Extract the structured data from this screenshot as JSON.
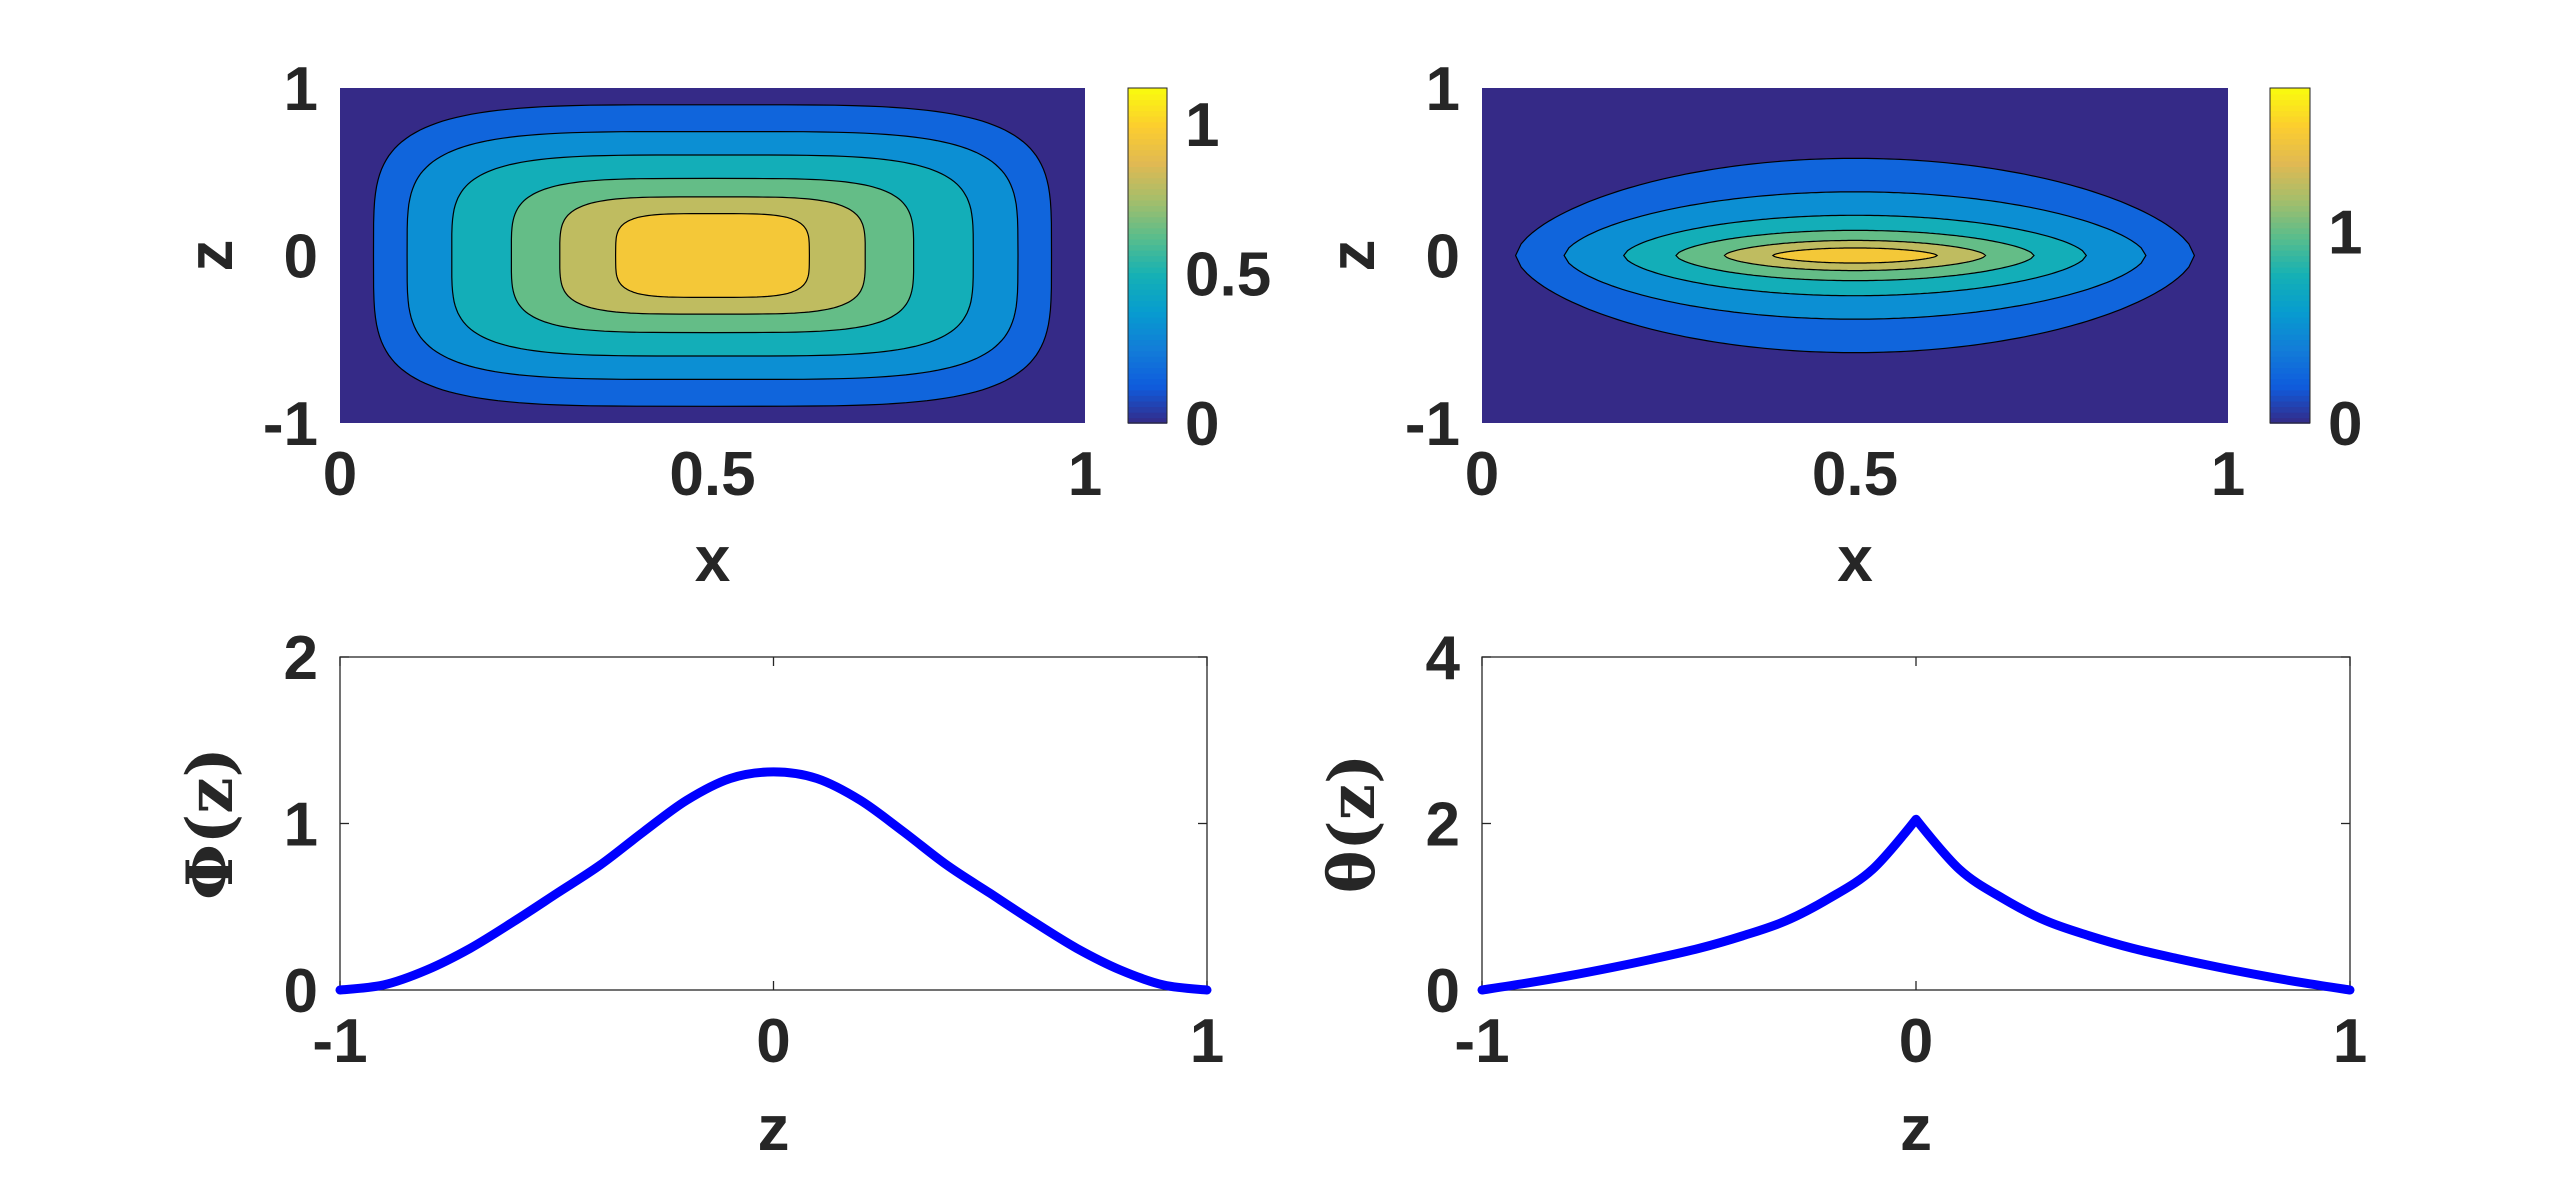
{
  "chart_data": [
    {
      "type": "contour",
      "xlabel": "x",
      "ylabel": "z",
      "xlim": [
        0,
        1
      ],
      "ylim": [
        -1,
        1
      ],
      "xticks": [
        "0",
        "0.5",
        "1"
      ],
      "yticks": [
        "-1",
        "0",
        "1"
      ],
      "colorbar": {
        "ticks": [
          "0",
          "0.5",
          "1"
        ],
        "range": [
          0,
          1.12
        ]
      },
      "levels": [
        0,
        0.16,
        0.32,
        0.48,
        0.64,
        0.8,
        0.96,
        1.12
      ],
      "colormap": "parula"
    },
    {
      "type": "contour",
      "xlabel": "x",
      "ylabel": "z",
      "xlim": [
        0,
        1
      ],
      "ylim": [
        -1,
        1
      ],
      "xticks": [
        "0",
        "0.5",
        "1"
      ],
      "yticks": [
        "-1",
        "0",
        "1"
      ],
      "colorbar": {
        "ticks": [
          "0",
          "1"
        ],
        "range": [
          0,
          1.75
        ]
      },
      "levels": [
        0,
        0.25,
        0.5,
        0.75,
        1.0,
        1.25,
        1.5,
        1.75
      ],
      "colormap": "parula"
    },
    {
      "type": "line",
      "xlabel": "z",
      "ylabel": "Φ(z)",
      "xlim": [
        -1,
        1
      ],
      "ylim": [
        0,
        2
      ],
      "xticks": [
        "-1",
        "0",
        "1"
      ],
      "yticks": [
        "0",
        "1",
        "2"
      ],
      "series": [
        {
          "color": "#0000ff",
          "x": [
            -1,
            -0.9,
            -0.8,
            -0.7,
            -0.6,
            -0.5,
            -0.4,
            -0.3,
            -0.2,
            -0.1,
            0,
            0.1,
            0.2,
            0.3,
            0.4,
            0.5,
            0.6,
            0.7,
            0.8,
            0.9,
            1
          ],
          "y": [
            0,
            0.03,
            0.12,
            0.25,
            0.41,
            0.58,
            0.75,
            0.95,
            1.14,
            1.27,
            1.31,
            1.27,
            1.14,
            0.95,
            0.75,
            0.58,
            0.41,
            0.25,
            0.12,
            0.03,
            0
          ]
        }
      ]
    },
    {
      "type": "line",
      "xlabel": "z",
      "ylabel": "θ(z)",
      "xlim": [
        -1,
        1
      ],
      "ylim": [
        0,
        4
      ],
      "xticks": [
        "-1",
        "0",
        "1"
      ],
      "yticks": [
        "0",
        "2",
        "4"
      ],
      "series": [
        {
          "color": "#0000ff",
          "x": [
            -1,
            -0.9,
            -0.8,
            -0.7,
            -0.6,
            -0.5,
            -0.4,
            -0.3,
            -0.2,
            -0.1,
            0,
            0.1,
            0.2,
            0.3,
            0.4,
            0.5,
            0.6,
            0.7,
            0.8,
            0.9,
            1
          ],
          "y": [
            0,
            0.08,
            0.17,
            0.27,
            0.38,
            0.5,
            0.65,
            0.83,
            1.1,
            1.45,
            2.05,
            1.45,
            1.1,
            0.83,
            0.65,
            0.5,
            0.38,
            0.27,
            0.17,
            0.08,
            0
          ]
        }
      ]
    }
  ]
}
